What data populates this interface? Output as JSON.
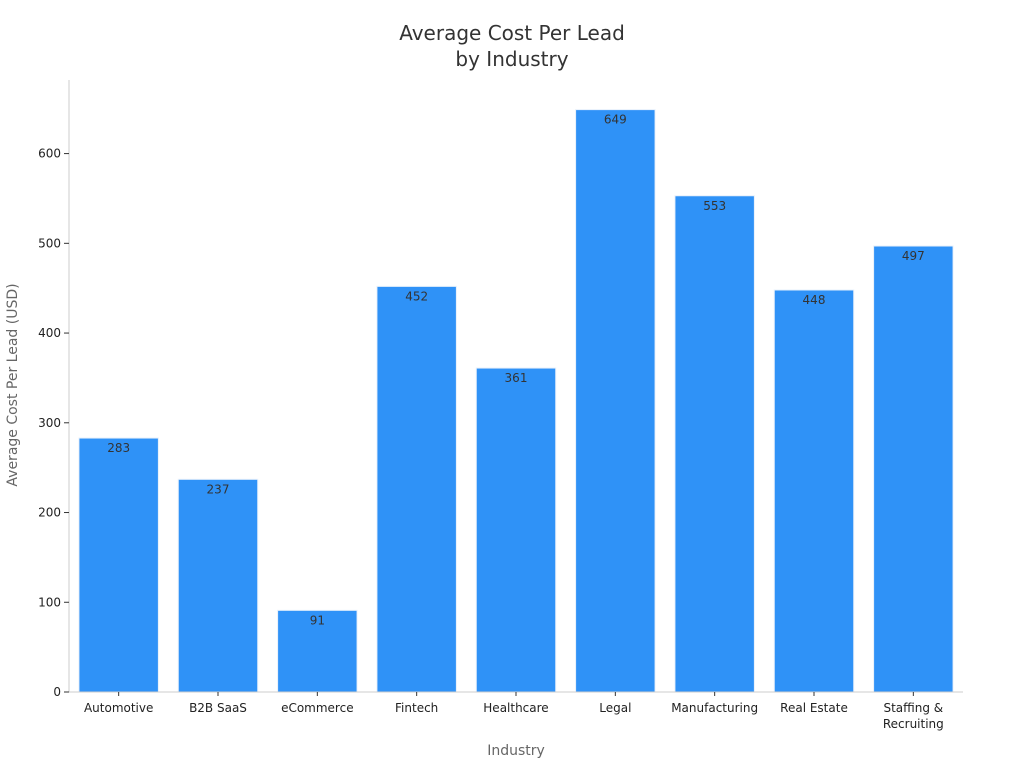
{
  "chart_data": {
    "type": "bar",
    "title_lines": [
      "Average Cost Per Lead",
      "by Industry"
    ],
    "xlabel": "Industry",
    "ylabel": "Average Cost Per Lead (USD)",
    "categories": [
      [
        "Automotive"
      ],
      [
        "B2B SaaS"
      ],
      [
        "eCommerce"
      ],
      [
        "Fintech"
      ],
      [
        "Healthcare"
      ],
      [
        "Legal"
      ],
      [
        "Manufacturing"
      ],
      [
        "Real Estate"
      ],
      [
        "Staffing &",
        "Recruiting"
      ]
    ],
    "values": [
      283,
      237,
      91,
      452,
      361,
      649,
      553,
      448,
      497
    ],
    "value_labels": [
      "283",
      "237",
      "91",
      "452",
      "361",
      "649",
      "553",
      "448",
      "497"
    ],
    "ylim": [
      0,
      682
    ],
    "yticks": [
      0,
      100,
      200,
      300,
      400,
      500,
      600
    ],
    "grid": false,
    "legend": "none",
    "colors": {
      "bar": "#2f92f7",
      "bar_edge": "#e8f1fb"
    }
  }
}
